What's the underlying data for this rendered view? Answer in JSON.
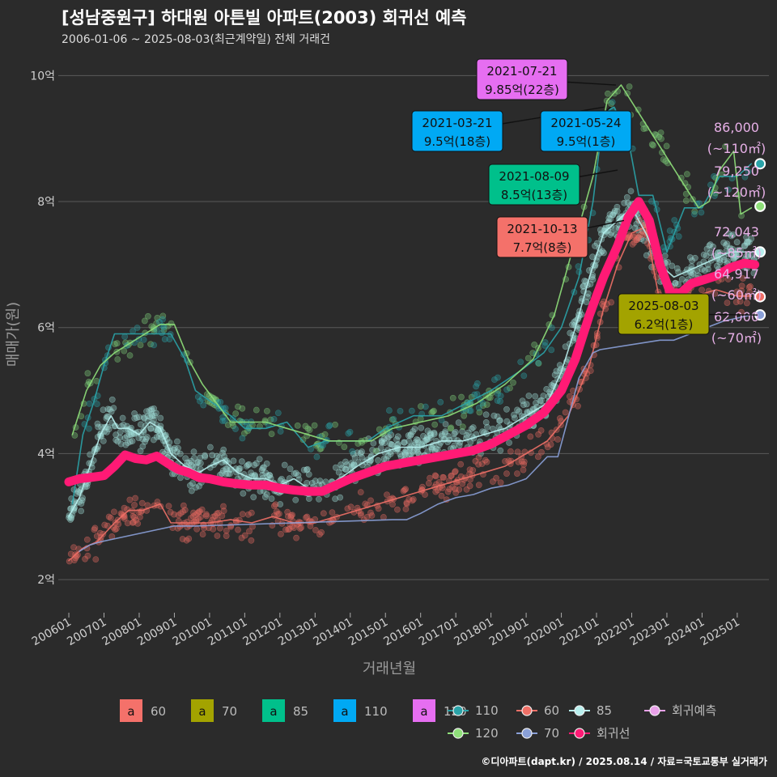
{
  "header": {
    "title": "[성남중원구] 하대원 아튼빌 아파트(2003) 회귀선 예측",
    "subtitle": "2006-01-06 ~ 2025-08-03(최근계약일) 전체 거래건"
  },
  "caption": "©디아파트(dapt.kr) / 2025.08.14 / 자료=국토교통부 실거래가",
  "colors": {
    "s60": "#f4716a",
    "s70": "#a3a300",
    "s85": "#00c08b",
    "s110": "#00a9f4",
    "s120": "#e66ef1",
    "line110": "#2aa3a8",
    "line120": "#8fe07a",
    "line60": "#f07067",
    "line70": "#8aa0d8",
    "line85": "#b8f0ee",
    "regression": "#ff1a75",
    "prediction": "#e8a0e8"
  },
  "chart_data": {
    "type": "scatter",
    "xlabel": "거래년월",
    "ylabel": "매매가(원)",
    "ylim": [
      1.5,
      10.3
    ],
    "xlim": [
      2005.7,
      2025.9
    ],
    "y_ticks": [
      {
        "v": 2,
        "label": "2억"
      },
      {
        "v": 4,
        "label": "4억"
      },
      {
        "v": 6,
        "label": "6억"
      },
      {
        "v": 8,
        "label": "8억"
      },
      {
        "v": 10,
        "label": "10억"
      }
    ],
    "x_ticks": [
      {
        "v": 2006,
        "label": "200601"
      },
      {
        "v": 2007,
        "label": "200701"
      },
      {
        "v": 2008,
        "label": "200801"
      },
      {
        "v": 2009,
        "label": "200901"
      },
      {
        "v": 2010,
        "label": "201001"
      },
      {
        "v": 2011,
        "label": "201101"
      },
      {
        "v": 2012,
        "label": "201201"
      },
      {
        "v": 2013,
        "label": "201301"
      },
      {
        "v": 2014,
        "label": "201401"
      },
      {
        "v": 2015,
        "label": "201501"
      },
      {
        "v": 2016,
        "label": "201601"
      },
      {
        "v": 2017,
        "label": "201701"
      },
      {
        "v": 2018,
        "label": "201801"
      },
      {
        "v": 2019,
        "label": "201901"
      },
      {
        "v": 2020,
        "label": "202001"
      },
      {
        "v": 2021,
        "label": "202101"
      },
      {
        "v": 2022,
        "label": "202201"
      },
      {
        "v": 2023,
        "label": "202301"
      },
      {
        "v": 2024,
        "label": "202401"
      },
      {
        "v": 2025,
        "label": "202501"
      }
    ],
    "series": [
      {
        "name": "110",
        "legend": "line",
        "color_key": "line110",
        "points": [
          [
            2006.1,
            3.2
          ],
          [
            2006.4,
            4.3
          ],
          [
            2006.7,
            4.8
          ],
          [
            2007.0,
            5.4
          ],
          [
            2007.3,
            5.9
          ],
          [
            2008.9,
            5.9
          ],
          [
            2009.3,
            5.5
          ],
          [
            2009.6,
            5.0
          ],
          [
            2010.1,
            4.8
          ],
          [
            2010.6,
            4.6
          ],
          [
            2011.0,
            4.4
          ],
          [
            2011.6,
            4.4
          ],
          [
            2012.2,
            4.5
          ],
          [
            2012.8,
            4.1
          ],
          [
            2013.3,
            4.2
          ],
          [
            2013.9,
            4.2
          ],
          [
            2014.5,
            4.2
          ],
          [
            2015.0,
            4.4
          ],
          [
            2015.8,
            4.6
          ],
          [
            2016.6,
            4.6
          ],
          [
            2017.3,
            4.8
          ],
          [
            2018.0,
            5.0
          ],
          [
            2018.8,
            5.3
          ],
          [
            2019.5,
            5.6
          ],
          [
            2020.0,
            6.0
          ],
          [
            2020.5,
            6.8
          ],
          [
            2020.9,
            8.0
          ],
          [
            2021.2,
            9.4
          ],
          [
            2021.5,
            9.5
          ],
          [
            2021.9,
            9.0
          ],
          [
            2022.2,
            8.1
          ],
          [
            2022.6,
            8.1
          ],
          [
            2023.0,
            7.2
          ],
          [
            2023.5,
            7.9
          ],
          [
            2024.0,
            7.9
          ],
          [
            2024.5,
            8.4
          ],
          [
            2025.0,
            8.4
          ],
          [
            2025.4,
            8.6
          ]
        ]
      },
      {
        "name": "120",
        "legend": "line",
        "color_key": "line120",
        "points": [
          [
            2006.1,
            4.3
          ],
          [
            2006.5,
            5.0
          ],
          [
            2006.9,
            5.4
          ],
          [
            2007.3,
            5.6
          ],
          [
            2008.6,
            6.05
          ],
          [
            2009.0,
            6.05
          ],
          [
            2009.4,
            5.5
          ],
          [
            2009.8,
            5.1
          ],
          [
            2010.2,
            4.8
          ],
          [
            2010.6,
            4.5
          ],
          [
            2011.0,
            4.5
          ],
          [
            2011.6,
            4.5
          ],
          [
            2012.2,
            4.4
          ],
          [
            2012.8,
            4.3
          ],
          [
            2013.4,
            4.2
          ],
          [
            2014.0,
            4.2
          ],
          [
            2014.6,
            4.2
          ],
          [
            2015.2,
            4.4
          ],
          [
            2016.0,
            4.5
          ],
          [
            2016.8,
            4.6
          ],
          [
            2017.6,
            4.8
          ],
          [
            2018.4,
            5.1
          ],
          [
            2019.2,
            5.5
          ],
          [
            2019.8,
            6.2
          ],
          [
            2020.3,
            7.2
          ],
          [
            2020.9,
            8.4
          ],
          [
            2021.3,
            9.6
          ],
          [
            2021.7,
            9.85
          ],
          [
            2023.9,
            7.9
          ],
          [
            2024.2,
            8.0
          ],
          [
            2024.5,
            8.5
          ],
          [
            2024.9,
            8.8
          ],
          [
            2025.1,
            7.8
          ],
          [
            2025.4,
            7.9
          ]
        ]
      },
      {
        "name": "60",
        "legend": "line",
        "color_key": "line60",
        "points": [
          [
            2006.0,
            2.3
          ],
          [
            2006.4,
            2.5
          ],
          [
            2006.8,
            2.6
          ],
          [
            2007.3,
            2.9
          ],
          [
            2007.7,
            3.1
          ],
          [
            2008.1,
            3.1
          ],
          [
            2008.6,
            3.2
          ],
          [
            2008.9,
            2.9
          ],
          [
            2009.4,
            2.9
          ],
          [
            2010.0,
            2.9
          ],
          [
            2010.6,
            2.95
          ],
          [
            2011.2,
            2.9
          ],
          [
            2011.8,
            3.0
          ],
          [
            2012.4,
            2.9
          ],
          [
            2013.0,
            2.9
          ],
          [
            2013.6,
            3.0
          ],
          [
            2014.2,
            3.1
          ],
          [
            2014.8,
            3.2
          ],
          [
            2015.4,
            3.3
          ],
          [
            2016.0,
            3.4
          ],
          [
            2016.6,
            3.5
          ],
          [
            2017.2,
            3.6
          ],
          [
            2017.8,
            3.7
          ],
          [
            2018.4,
            3.8
          ],
          [
            2019.0,
            4.0
          ],
          [
            2019.6,
            4.2
          ],
          [
            2020.2,
            4.6
          ],
          [
            2020.8,
            5.4
          ],
          [
            2021.2,
            6.3
          ],
          [
            2021.6,
            7.0
          ],
          [
            2022.0,
            7.5
          ],
          [
            2022.4,
            7.6
          ],
          [
            2022.8,
            6.4
          ],
          [
            2023.2,
            6.4
          ],
          [
            2023.8,
            6.5
          ],
          [
            2024.4,
            6.6
          ],
          [
            2025.0,
            6.5
          ],
          [
            2025.4,
            6.5
          ]
        ]
      },
      {
        "name": "70",
        "legend": "line",
        "color_key": "line70",
        "points": [
          [
            2006.3,
            2.45
          ],
          [
            2006.6,
            2.55
          ],
          [
            2006.9,
            2.6
          ],
          [
            2009.0,
            2.85
          ],
          [
            2009.6,
            2.85
          ],
          [
            2015.2,
            2.95
          ],
          [
            2015.6,
            2.95
          ],
          [
            2016.0,
            3.05
          ],
          [
            2016.5,
            3.2
          ],
          [
            2017.0,
            3.3
          ],
          [
            2017.5,
            3.35
          ],
          [
            2018.0,
            3.45
          ],
          [
            2018.5,
            3.5
          ],
          [
            2019.0,
            3.6
          ],
          [
            2019.6,
            3.95
          ],
          [
            2019.9,
            3.95
          ],
          [
            2020.5,
            5.2
          ],
          [
            2020.9,
            5.6
          ],
          [
            2021.1,
            5.65
          ],
          [
            2022.8,
            5.8
          ],
          [
            2023.2,
            5.8
          ],
          [
            2024.6,
            6.1
          ],
          [
            2025.0,
            6.15
          ],
          [
            2025.4,
            6.2
          ]
        ]
      },
      {
        "name": "85",
        "legend": "line",
        "color_key": "line85",
        "points": [
          [
            2006.0,
            3.0
          ],
          [
            2006.3,
            3.3
          ],
          [
            2006.6,
            3.8
          ],
          [
            2006.9,
            4.3
          ],
          [
            2007.2,
            4.6
          ],
          [
            2007.4,
            4.4
          ],
          [
            2007.7,
            4.4
          ],
          [
            2008.0,
            4.3
          ],
          [
            2008.3,
            4.5
          ],
          [
            2008.6,
            4.4
          ],
          [
            2008.9,
            4.0
          ],
          [
            2009.3,
            3.8
          ],
          [
            2009.7,
            3.7
          ],
          [
            2010.0,
            3.8
          ],
          [
            2010.4,
            3.9
          ],
          [
            2010.8,
            3.7
          ],
          [
            2011.2,
            3.6
          ],
          [
            2011.6,
            3.6
          ],
          [
            2012.0,
            3.5
          ],
          [
            2012.4,
            3.6
          ],
          [
            2012.8,
            3.45
          ],
          [
            2013.2,
            3.45
          ],
          [
            2013.7,
            3.6
          ],
          [
            2014.2,
            3.8
          ],
          [
            2014.8,
            4.0
          ],
          [
            2015.4,
            4.1
          ],
          [
            2016.0,
            4.1
          ],
          [
            2016.6,
            4.2
          ],
          [
            2017.2,
            4.2
          ],
          [
            2017.8,
            4.3
          ],
          [
            2018.4,
            4.4
          ],
          [
            2019.0,
            4.6
          ],
          [
            2019.6,
            4.8
          ],
          [
            2020.0,
            5.3
          ],
          [
            2020.4,
            6.0
          ],
          [
            2020.8,
            6.8
          ],
          [
            2021.2,
            7.5
          ],
          [
            2021.6,
            7.7
          ],
          [
            2022.0,
            7.9
          ],
          [
            2022.4,
            7.5
          ],
          [
            2022.8,
            7.0
          ],
          [
            2023.2,
            6.8
          ],
          [
            2023.6,
            6.9
          ],
          [
            2024.0,
            7.0
          ],
          [
            2024.4,
            7.1
          ],
          [
            2024.8,
            7.2
          ],
          [
            2025.2,
            7.2
          ],
          [
            2025.5,
            7.2
          ]
        ]
      },
      {
        "name": "회귀선",
        "legend": "line",
        "color_key": "regression",
        "points": [
          [
            2006.0,
            3.55
          ],
          [
            2006.3,
            3.6
          ],
          [
            2006.6,
            3.62
          ],
          [
            2007.0,
            3.65
          ],
          [
            2007.3,
            3.8
          ],
          [
            2007.6,
            3.98
          ],
          [
            2007.9,
            3.92
          ],
          [
            2008.2,
            3.9
          ],
          [
            2008.5,
            3.96
          ],
          [
            2008.8,
            3.85
          ],
          [
            2009.1,
            3.75
          ],
          [
            2009.4,
            3.7
          ],
          [
            2009.7,
            3.62
          ],
          [
            2010.0,
            3.6
          ],
          [
            2010.4,
            3.55
          ],
          [
            2010.8,
            3.52
          ],
          [
            2011.2,
            3.5
          ],
          [
            2011.6,
            3.5
          ],
          [
            2012.0,
            3.45
          ],
          [
            2012.4,
            3.42
          ],
          [
            2012.8,
            3.4
          ],
          [
            2013.2,
            3.4
          ],
          [
            2013.6,
            3.5
          ],
          [
            2014.0,
            3.6
          ],
          [
            2014.5,
            3.7
          ],
          [
            2015.0,
            3.8
          ],
          [
            2015.5,
            3.85
          ],
          [
            2016.0,
            3.9
          ],
          [
            2016.5,
            3.95
          ],
          [
            2017.0,
            4.0
          ],
          [
            2017.5,
            4.05
          ],
          [
            2018.0,
            4.15
          ],
          [
            2018.5,
            4.3
          ],
          [
            2019.0,
            4.45
          ],
          [
            2019.5,
            4.65
          ],
          [
            2020.0,
            5.0
          ],
          [
            2020.4,
            5.5
          ],
          [
            2020.8,
            6.2
          ],
          [
            2021.2,
            6.8
          ],
          [
            2021.6,
            7.3
          ],
          [
            2021.9,
            7.75
          ],
          [
            2022.2,
            8.0
          ],
          [
            2022.5,
            7.7
          ],
          [
            2022.8,
            7.0
          ],
          [
            2023.1,
            6.55
          ],
          [
            2023.4,
            6.55
          ],
          [
            2023.7,
            6.7
          ],
          [
            2024.0,
            6.75
          ],
          [
            2024.4,
            6.82
          ],
          [
            2024.8,
            6.95
          ],
          [
            2025.2,
            7.02
          ],
          [
            2025.5,
            7.0
          ]
        ]
      }
    ],
    "legend_fill": [
      {
        "name": "60",
        "color_key": "s60"
      },
      {
        "name": "70",
        "color_key": "s70"
      },
      {
        "name": "85",
        "color_key": "s85"
      },
      {
        "name": "110",
        "color_key": "s110"
      },
      {
        "name": "120",
        "color_key": "s120"
      }
    ],
    "legend_line": [
      {
        "name": "110",
        "color_key": "line110"
      },
      {
        "name": "60",
        "color_key": "line60"
      },
      {
        "name": "85",
        "color_key": "line85"
      },
      {
        "name": "회귀예측",
        "color_key": "prediction"
      },
      {
        "name": "120",
        "color_key": "line120"
      },
      {
        "name": "70",
        "color_key": "line70"
      },
      {
        "name": "회귀선",
        "color_key": "regression"
      }
    ],
    "annotations": [
      {
        "date": "2021-07-21",
        "price": "9.85억(22층)",
        "color_key": "s120",
        "x": 2021.55,
        "y": 9.85
      },
      {
        "date": "2021-03-21",
        "price": "9.5억(18층)",
        "color_key": "s110",
        "x": 2021.22,
        "y": 9.5
      },
      {
        "date": "2021-05-24",
        "price": "9.5억(1층)",
        "color_key": "s110",
        "x": 2021.4,
        "y": 9.5
      },
      {
        "date": "2021-08-09",
        "price": "8.5억(13층)",
        "color_key": "s85",
        "x": 2021.6,
        "y": 8.5
      },
      {
        "date": "2021-10-13",
        "price": "7.7억(8층)",
        "color_key": "s60",
        "x": 2021.78,
        "y": 7.7
      },
      {
        "date": "2025-08-03",
        "price": "6.2억(1층)",
        "color_key": "s70",
        "x": 2025.58,
        "y": 6.2
      }
    ],
    "predictions": [
      {
        "value": "86,000",
        "area": "(~110㎡)",
        "color_key": "line110",
        "y": 8.6
      },
      {
        "value": "79,250",
        "area": "(~120㎡)",
        "color_key": "line120",
        "y": 7.925
      },
      {
        "value": "72,043",
        "area": "(~85㎡)",
        "color_key": "line85",
        "y": 7.2
      },
      {
        "value": "64,917",
        "area": "(~60㎡)",
        "color_key": "line60",
        "y": 6.49
      },
      {
        "value": "62,000",
        "area": "(~70㎡)",
        "color_key": "line70",
        "y": 6.2
      }
    ]
  }
}
